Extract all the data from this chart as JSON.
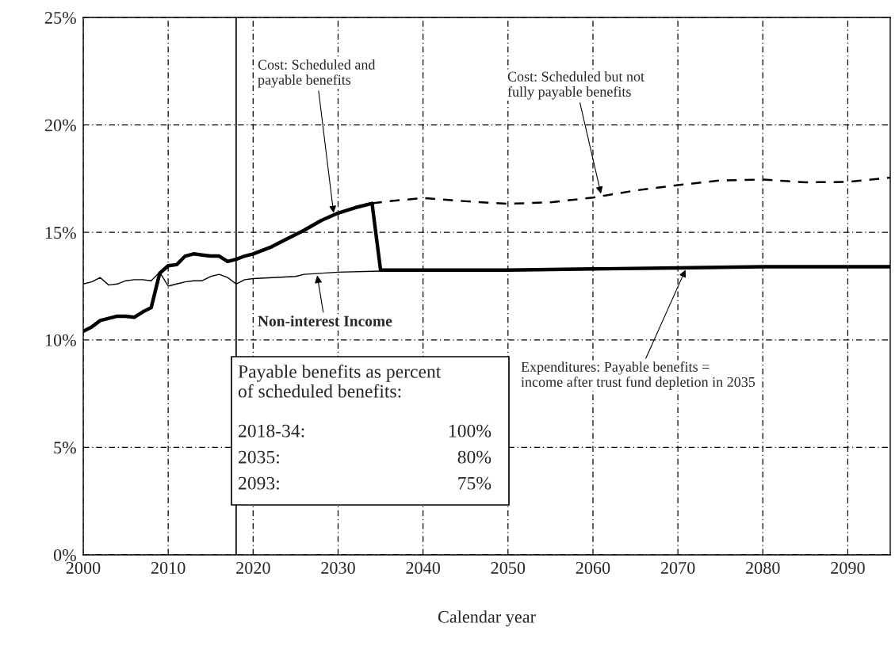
{
  "chart_data": {
    "type": "line",
    "xlabel": "Calendar year",
    "xlim": [
      2000,
      2095
    ],
    "xticks": [
      2000,
      2010,
      2020,
      2030,
      2040,
      2050,
      2060,
      2070,
      2080,
      2090
    ],
    "ylim": [
      0,
      25
    ],
    "yticks": [
      {
        "value": 0,
        "label": "0%"
      },
      {
        "value": 5,
        "label": "5%"
      },
      {
        "value": 10,
        "label": "10%"
      },
      {
        "value": 15,
        "label": "15%"
      },
      {
        "value": 20,
        "label": "20%"
      },
      {
        "value": 25,
        "label": "25%"
      }
    ],
    "grid": true,
    "legend": false,
    "marker": "none",
    "series": [
      {
        "color": "#000000",
        "line_style": "solid",
        "x": [
          2000,
          2001,
          2002,
          2003,
          2004,
          2005,
          2006,
          2007,
          2008,
          2009,
          2010,
          2011,
          2012,
          2013,
          2014,
          2015,
          2016,
          2017,
          2018,
          2019,
          2020,
          2022,
          2024,
          2026,
          2028,
          2030,
          2032,
          2034,
          2035,
          2040,
          2050,
          2060,
          2070,
          2080,
          2095
        ],
        "values": [
          10.4,
          10.6,
          10.9,
          11.0,
          11.1,
          11.1,
          11.05,
          11.3,
          11.5,
          13.1,
          13.45,
          13.5,
          13.9,
          14.0,
          13.95,
          13.9,
          13.9,
          13.65,
          13.75,
          13.9,
          14.0,
          14.3,
          14.7,
          15.1,
          15.55,
          15.9,
          16.15,
          16.35,
          13.25,
          13.25,
          13.25,
          13.3,
          13.35,
          13.4,
          13.4
        ]
      },
      {
        "color": "#000000",
        "line_style": "dashed",
        "x": [
          2034,
          2036,
          2040,
          2045,
          2050,
          2055,
          2060,
          2065,
          2070,
          2075,
          2080,
          2085,
          2090,
          2095
        ],
        "values": [
          16.35,
          16.45,
          16.6,
          16.45,
          16.33,
          16.4,
          16.62,
          16.95,
          17.2,
          17.42,
          17.46,
          17.33,
          17.35,
          17.55
        ]
      },
      {
        "color": "#000000",
        "line_style": "solid",
        "x": [
          2000,
          2001,
          2002,
          2003,
          2004,
          2005,
          2006,
          2007,
          2008,
          2009,
          2010,
          2011,
          2012,
          2013,
          2014,
          2015,
          2016,
          2017,
          2018,
          2019,
          2020,
          2025,
          2026,
          2030,
          2035
        ],
        "values": [
          12.6,
          12.7,
          12.9,
          12.55,
          12.6,
          12.75,
          12.8,
          12.8,
          12.75,
          13.15,
          12.5,
          12.6,
          12.7,
          12.75,
          12.75,
          12.95,
          13.05,
          12.9,
          12.6,
          12.8,
          12.85,
          12.95,
          13.05,
          13.15,
          13.2
        ]
      }
    ],
    "ref_lines": [
      {
        "axis": "x",
        "value": 2018,
        "color": "#000000",
        "line_style": "solid"
      }
    ],
    "annotations": [
      {
        "text": "Cost: Scheduled and\npayable benefits",
        "x": 2029.5,
        "y": 15.8
      },
      {
        "text": "Cost: Scheduled but not\nfully payable benefits",
        "x": 2061,
        "y": 16.7
      },
      {
        "text": "Non-interest Income",
        "x": 2027.5,
        "y": 13.1
      },
      {
        "text": "Expenditures: Payable benefits =\nincome after trust fund depletion in 2035",
        "x": 2071,
        "y": 13.35
      },
      "Payable benefits as percent\nof scheduled benefits:",
      "2018-34:",
      "100%",
      "2035:",
      "80%",
      "2093:",
      "75%"
    ]
  }
}
